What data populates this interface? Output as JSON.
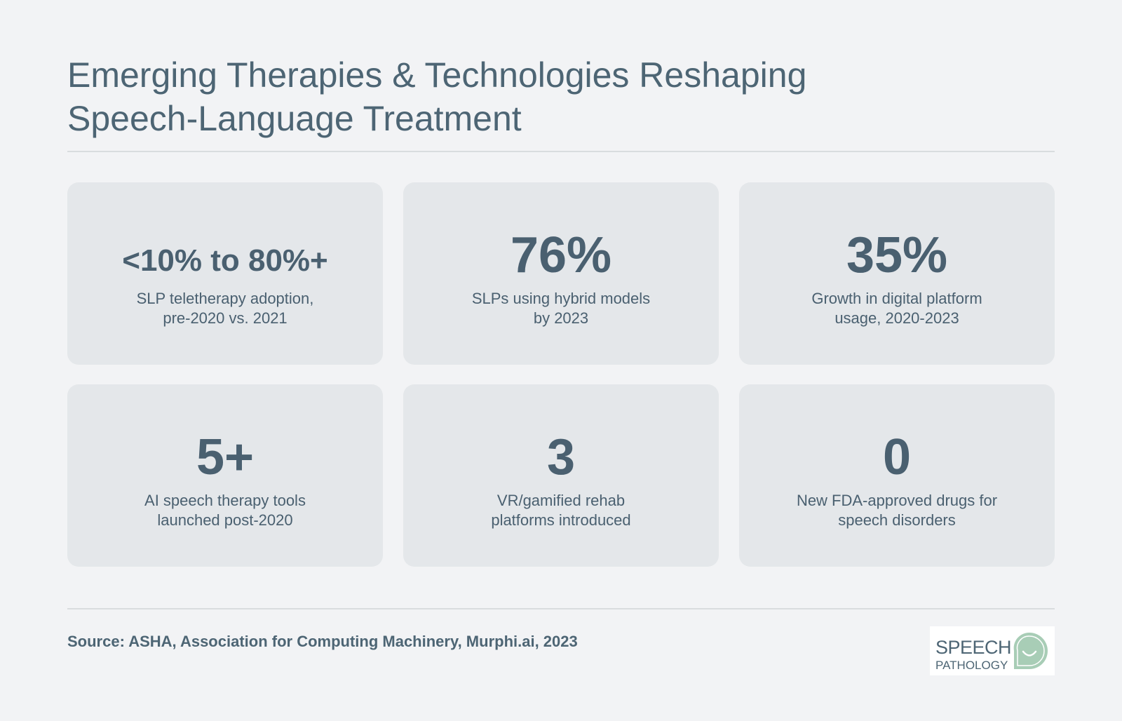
{
  "title": "Emerging Therapies & Technologies Reshaping Speech-Language Treatment",
  "stats": [
    {
      "value": "<10% to 80%+",
      "label_line1": "SLP teletherapy adoption,",
      "label_line2": "pre-2020 vs. 2021"
    },
    {
      "value": "76%",
      "label_line1": "SLPs using hybrid models",
      "label_line2": "by 2023"
    },
    {
      "value": "35%",
      "label_line1": "Growth in digital platform",
      "label_line2": "usage, 2020-2023"
    },
    {
      "value": "5+",
      "label_line1": "AI speech therapy tools",
      "label_line2": "launched post-2020"
    },
    {
      "value": "3",
      "label_line1": "VR/gamified rehab",
      "label_line2": "platforms introduced"
    },
    {
      "value": "0",
      "label_line1": "New FDA-approved drugs for",
      "label_line2": "speech disorders"
    }
  ],
  "source": "Source: ASHA, Association for Computing Machinery, Murphi.ai, 2023",
  "logo": {
    "line1": "SPEECH",
    "line2": "PATHOLOGY",
    "icon": "speech-bubble-smile-icon",
    "icon_color": "#a8cdb6"
  },
  "colors": {
    "background": "#f2f3f5",
    "card": "#e4e7ea",
    "text": "#4a6070"
  }
}
